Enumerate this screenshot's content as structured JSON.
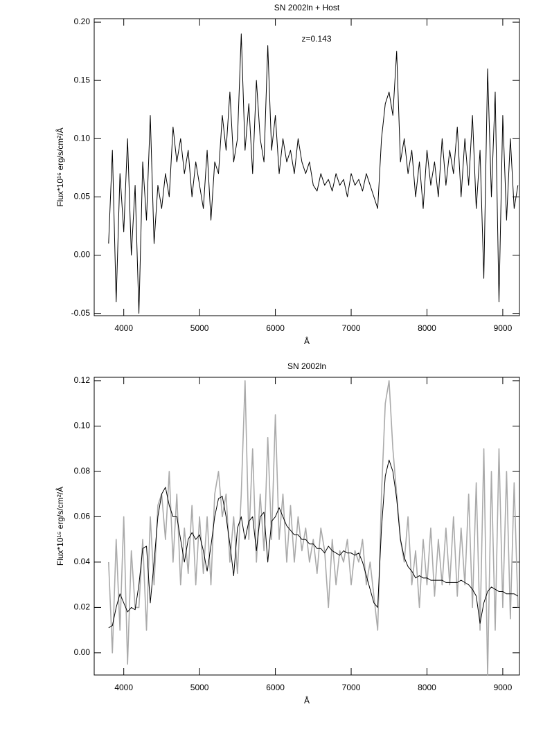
{
  "chart_data": [
    {
      "type": "line",
      "title": "SN 2002ln + Host",
      "annotation": "z=0.143",
      "x_label": "Å",
      "y_label": "Flux*10¹⁶ erg/s/cm²/Å",
      "x": [
        3800,
        3850,
        3900,
        3950,
        4000,
        4050,
        4100,
        4150,
        4200,
        4250,
        4300,
        4350,
        4400,
        4450,
        4500,
        4550,
        4600,
        4650,
        4700,
        4750,
        4800,
        4850,
        4900,
        4950,
        5000,
        5050,
        5100,
        5150,
        5200,
        5250,
        5300,
        5350,
        5400,
        5450,
        5500,
        5550,
        5600,
        5650,
        5700,
        5750,
        5800,
        5850,
        5900,
        5950,
        6000,
        6050,
        6100,
        6150,
        6200,
        6250,
        6300,
        6350,
        6400,
        6450,
        6500,
        6550,
        6600,
        6650,
        6700,
        6750,
        6800,
        6850,
        6900,
        6950,
        7000,
        7050,
        7100,
        7150,
        7200,
        7250,
        7300,
        7350,
        7400,
        7450,
        7500,
        7550,
        7600,
        7650,
        7700,
        7750,
        7800,
        7850,
        7900,
        7950,
        8000,
        8050,
        8100,
        8150,
        8200,
        8250,
        8300,
        8350,
        8400,
        8450,
        8500,
        8550,
        8600,
        8650,
        8700,
        8750,
        8800,
        8850,
        8900,
        8950,
        9000,
        9050,
        9100,
        9150,
        9200
      ],
      "series": [
        {
          "color": "#000000",
          "values": [
            0.01,
            0.09,
            -0.04,
            0.07,
            0.02,
            0.1,
            0.0,
            0.06,
            -0.05,
            0.08,
            0.03,
            0.12,
            0.01,
            0.06,
            0.04,
            0.07,
            0.05,
            0.11,
            0.08,
            0.1,
            0.07,
            0.09,
            0.05,
            0.08,
            0.06,
            0.04,
            0.09,
            0.03,
            0.08,
            0.07,
            0.12,
            0.09,
            0.14,
            0.08,
            0.1,
            0.19,
            0.09,
            0.13,
            0.07,
            0.15,
            0.1,
            0.08,
            0.18,
            0.09,
            0.12,
            0.07,
            0.1,
            0.08,
            0.09,
            0.07,
            0.1,
            0.08,
            0.07,
            0.08,
            0.06,
            0.055,
            0.07,
            0.06,
            0.065,
            0.055,
            0.07,
            0.06,
            0.065,
            0.05,
            0.07,
            0.06,
            0.065,
            0.055,
            0.07,
            0.06,
            0.05,
            0.04,
            0.1,
            0.13,
            0.14,
            0.12,
            0.175,
            0.08,
            0.1,
            0.07,
            0.09,
            0.05,
            0.08,
            0.04,
            0.09,
            0.06,
            0.08,
            0.05,
            0.1,
            0.06,
            0.09,
            0.07,
            0.11,
            0.05,
            0.1,
            0.06,
            0.12,
            0.04,
            0.09,
            -0.02,
            0.16,
            0.05,
            0.14,
            -0.04,
            0.12,
            0.03,
            0.1,
            0.04,
            0.06
          ]
        }
      ],
      "xlim": [
        3610,
        9220
      ],
      "xticks": [
        4000,
        5000,
        6000,
        7000,
        8000,
        9000
      ],
      "ylim": [
        -0.052,
        0.203
      ],
      "yticks": [
        {
          "value": -0.05,
          "label": "-0.05"
        },
        {
          "value": 0,
          "label": "0.00"
        },
        {
          "value": 0.05,
          "label": "0.05"
        },
        {
          "value": 0.1,
          "label": "0.10"
        },
        {
          "value": 0.15,
          "label": "0.15"
        },
        {
          "value": 0.2,
          "label": "0.20"
        }
      ]
    },
    {
      "type": "line",
      "title": "SN 2002ln",
      "x_label": "Å",
      "y_label": "Flux*10¹⁶ erg/s/cm²/Å",
      "x": [
        3800,
        3850,
        3900,
        3950,
        4000,
        4050,
        4100,
        4150,
        4200,
        4250,
        4300,
        4350,
        4400,
        4450,
        4500,
        4550,
        4600,
        4650,
        4700,
        4750,
        4800,
        4850,
        4900,
        4950,
        5000,
        5050,
        5100,
        5150,
        5200,
        5250,
        5300,
        5350,
        5400,
        5450,
        5500,
        5550,
        5600,
        5650,
        5700,
        5750,
        5800,
        5850,
        5900,
        5950,
        6000,
        6050,
        6100,
        6150,
        6200,
        6250,
        6300,
        6350,
        6400,
        6450,
        6500,
        6550,
        6600,
        6650,
        6700,
        6750,
        6800,
        6850,
        6900,
        6950,
        7000,
        7050,
        7100,
        7150,
        7200,
        7250,
        7300,
        7350,
        7400,
        7450,
        7500,
        7550,
        7600,
        7650,
        7700,
        7750,
        7800,
        7850,
        7900,
        7950,
        8000,
        8050,
        8100,
        8150,
        8200,
        8250,
        8300,
        8350,
        8400,
        8450,
        8500,
        8550,
        8600,
        8650,
        8700,
        8750,
        8800,
        8850,
        8900,
        8950,
        9000,
        9050,
        9100,
        9150,
        9200
      ],
      "series": [
        {
          "color": "#aaaaaa",
          "values": [
            0.04,
            0.0,
            0.05,
            0.01,
            0.06,
            -0.005,
            0.045,
            0.02,
            0.02,
            0.05,
            0.01,
            0.06,
            0.03,
            0.065,
            0.07,
            0.05,
            0.08,
            0.04,
            0.07,
            0.03,
            0.055,
            0.035,
            0.065,
            0.03,
            0.06,
            0.035,
            0.06,
            0.03,
            0.07,
            0.08,
            0.06,
            0.07,
            0.04,
            0.06,
            0.035,
            0.07,
            0.12,
            0.05,
            0.09,
            0.04,
            0.07,
            0.045,
            0.095,
            0.05,
            0.105,
            0.05,
            0.07,
            0.04,
            0.065,
            0.04,
            0.06,
            0.045,
            0.055,
            0.04,
            0.05,
            0.035,
            0.055,
            0.045,
            0.02,
            0.05,
            0.03,
            0.045,
            0.04,
            0.05,
            0.03,
            0.045,
            0.04,
            0.05,
            0.03,
            0.04,
            0.025,
            0.01,
            0.07,
            0.11,
            0.12,
            0.09,
            0.07,
            0.05,
            0.04,
            0.06,
            0.03,
            0.045,
            0.02,
            0.05,
            0.03,
            0.055,
            0.025,
            0.05,
            0.03,
            0.055,
            0.03,
            0.06,
            0.025,
            0.055,
            0.03,
            0.07,
            0.02,
            0.075,
            0.01,
            0.09,
            -0.01,
            0.08,
            0.01,
            0.09,
            0.02,
            0.08,
            0.015,
            0.075,
            0.02
          ]
        },
        {
          "color": "#000000",
          "values": [
            0.011,
            0.012,
            0.02,
            0.026,
            0.022,
            0.018,
            0.02,
            0.019,
            0.03,
            0.046,
            0.047,
            0.022,
            0.04,
            0.06,
            0.07,
            0.073,
            0.065,
            0.06,
            0.06,
            0.05,
            0.04,
            0.05,
            0.053,
            0.05,
            0.052,
            0.045,
            0.036,
            0.047,
            0.06,
            0.068,
            0.069,
            0.06,
            0.048,
            0.034,
            0.055,
            0.06,
            0.05,
            0.058,
            0.06,
            0.045,
            0.06,
            0.062,
            0.04,
            0.058,
            0.06,
            0.064,
            0.06,
            0.056,
            0.054,
            0.052,
            0.052,
            0.05,
            0.05,
            0.048,
            0.048,
            0.046,
            0.046,
            0.044,
            0.047,
            0.045,
            0.044,
            0.043,
            0.045,
            0.044,
            0.044,
            0.043,
            0.044,
            0.04,
            0.034,
            0.028,
            0.022,
            0.02,
            0.055,
            0.078,
            0.085,
            0.08,
            0.068,
            0.05,
            0.042,
            0.038,
            0.036,
            0.033,
            0.034,
            0.033,
            0.033,
            0.032,
            0.032,
            0.032,
            0.032,
            0.031,
            0.031,
            0.031,
            0.031,
            0.032,
            0.031,
            0.03,
            0.028,
            0.025,
            0.013,
            0.022,
            0.027,
            0.029,
            0.028,
            0.027,
            0.027,
            0.026,
            0.026,
            0.026,
            0.025
          ]
        }
      ],
      "xlim": [
        3610,
        9220
      ],
      "xticks": [
        4000,
        5000,
        6000,
        7000,
        8000,
        9000
      ],
      "ylim": [
        -0.0098,
        0.1215
      ],
      "yticks": [
        {
          "value": 0,
          "label": "0.00"
        },
        {
          "value": 0.02,
          "label": "0.02"
        },
        {
          "value": 0.04,
          "label": "0.04"
        },
        {
          "value": 0.06,
          "label": "0.06"
        },
        {
          "value": 0.08,
          "label": "0.08"
        },
        {
          "value": 0.1,
          "label": "0.10"
        },
        {
          "value": 0.12,
          "label": "0.12"
        }
      ]
    }
  ]
}
